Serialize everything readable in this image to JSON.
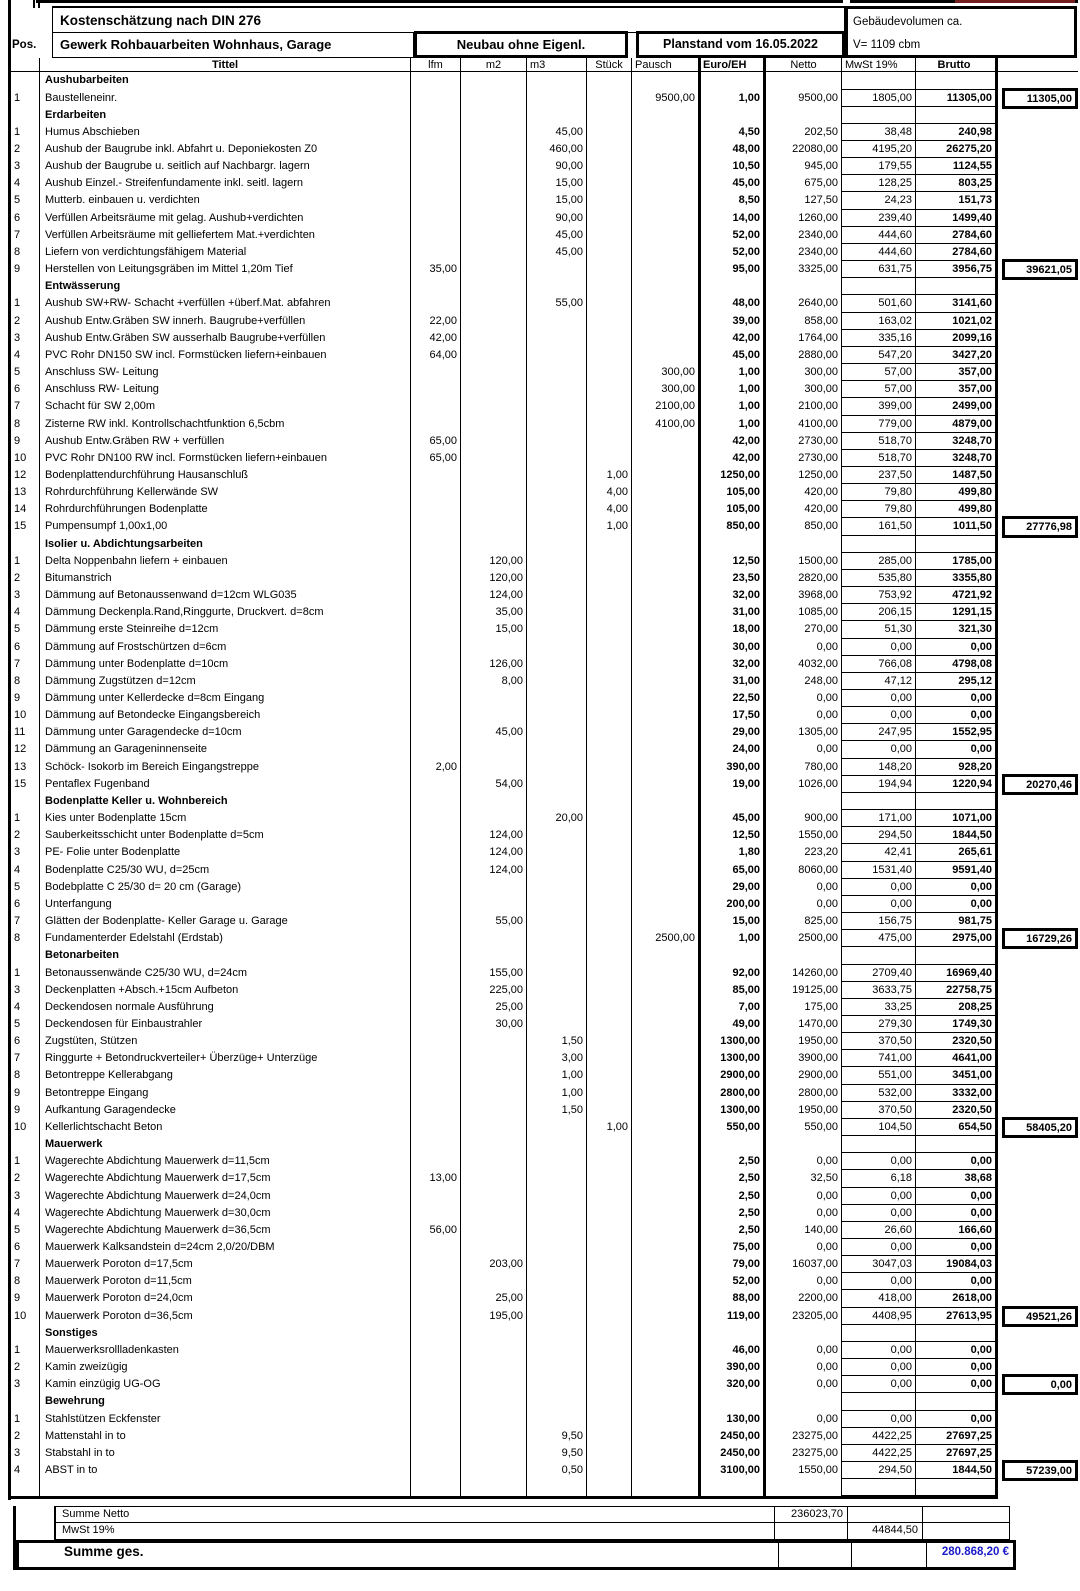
{
  "header": {
    "title": "Kostenschätzung nach DIN 276",
    "pos_label": "Pos.",
    "gewerk": "Gewerk Rohbauarbeiten Wohnhaus, Garage",
    "neubau": "Neubau ohne Eigenl.",
    "planstand": "Planstand vom 16.05.2022",
    "volume_label": "Gebäudevolumen ca.",
    "volume_value": "V= 1109 cbm",
    "columns": [
      "Tittel",
      "lfm",
      "m2",
      "m3",
      "Stück",
      "Pausch",
      "Euro/EH",
      "Netto",
      "MwSt 19%",
      "Brutto"
    ]
  },
  "sections": [
    {
      "name": "Aushubarbeiten",
      "rows": [
        {
          "pos": "1",
          "title": "Baustelleneinr.",
          "pausch": "9500,00",
          "euro": "1,00",
          "netto": "9500,00",
          "mwst": "1805,00",
          "brutto": "11305,00",
          "total": "11305,00"
        }
      ]
    },
    {
      "name": "Erdarbeiten",
      "rows": [
        {
          "pos": "1",
          "title": "Humus Abschieben",
          "m3": "45,00",
          "euro": "4,50",
          "netto": "202,50",
          "mwst": "38,48",
          "brutto": "240,98"
        },
        {
          "pos": "2",
          "title": "Aushub der Baugrube inkl. Abfahrt u. Deponiekosten Z0",
          "m3": "460,00",
          "euro": "48,00",
          "netto": "22080,00",
          "mwst": "4195,20",
          "brutto": "26275,20"
        },
        {
          "pos": "3",
          "title": "Aushub der Baugrube u. seitlich auf Nachbargr. lagern",
          "m3": "90,00",
          "euro": "10,50",
          "netto": "945,00",
          "mwst": "179,55",
          "brutto": "1124,55"
        },
        {
          "pos": "4",
          "title": "Aushub Einzel.- Streifenfundamente inkl. seitl. lagern",
          "m3": "15,00",
          "euro": "45,00",
          "netto": "675,00",
          "mwst": "128,25",
          "brutto": "803,25"
        },
        {
          "pos": "5",
          "title": "Mutterb. einbauen u. verdichten",
          "m3": "15,00",
          "euro": "8,50",
          "netto": "127,50",
          "mwst": "24,23",
          "brutto": "151,73"
        },
        {
          "pos": "6",
          "title": "Verfüllen Arbeitsräume mit gelag. Aushub+verdichten",
          "m3": "90,00",
          "euro": "14,00",
          "netto": "1260,00",
          "mwst": "239,40",
          "brutto": "1499,40"
        },
        {
          "pos": "7",
          "title": "Verfüllen Arbeitsräume mit gelliefertem Mat.+verdichten",
          "m3": "45,00",
          "euro": "52,00",
          "netto": "2340,00",
          "mwst": "444,60",
          "brutto": "2784,60"
        },
        {
          "pos": "8",
          "title": "Liefern von verdichtungsfähigem Material",
          "m3": "45,00",
          "euro": "52,00",
          "netto": "2340,00",
          "mwst": "444,60",
          "brutto": "2784,60"
        },
        {
          "pos": "9",
          "title": "Herstellen von Leitungsgräben im Mittel 1,20m Tief",
          "lfm": "35,00",
          "euro": "95,00",
          "netto": "3325,00",
          "mwst": "631,75",
          "brutto": "3956,75",
          "total": "39621,05"
        }
      ]
    },
    {
      "name": "Entwässerung",
      "rows": [
        {
          "pos": "1",
          "title": "Aushub SW+RW- Schacht +verfüllen +überf.Mat. abfahren",
          "m3": "55,00",
          "euro": "48,00",
          "netto": "2640,00",
          "mwst": "501,60",
          "brutto": "3141,60"
        },
        {
          "pos": "2",
          "title": "Aushub Entw.Gräben SW innerh. Baugrube+verfüllen",
          "lfm": "22,00",
          "euro": "39,00",
          "netto": "858,00",
          "mwst": "163,02",
          "brutto": "1021,02"
        },
        {
          "pos": "3",
          "title": "Aushub Entw.Gräben SW ausserhalb Baugrube+verfüllen",
          "lfm": "42,00",
          "euro": "42,00",
          "netto": "1764,00",
          "mwst": "335,16",
          "brutto": "2099,16"
        },
        {
          "pos": "4",
          "title": "PVC Rohr DN150 SW incl. Formstücken liefern+einbauen",
          "lfm": "64,00",
          "euro": "45,00",
          "netto": "2880,00",
          "mwst": "547,20",
          "brutto": "3427,20"
        },
        {
          "pos": "5",
          "title": "Anschluss SW- Leitung",
          "pausch": "300,00",
          "euro": "1,00",
          "netto": "300,00",
          "mwst": "57,00",
          "brutto": "357,00"
        },
        {
          "pos": "6",
          "title": "Anschluss RW- Leitung",
          "pausch": "300,00",
          "euro": "1,00",
          "netto": "300,00",
          "mwst": "57,00",
          "brutto": "357,00"
        },
        {
          "pos": "7",
          "title": "Schacht für SW 2,00m",
          "pausch": "2100,00",
          "euro": "1,00",
          "netto": "2100,00",
          "mwst": "399,00",
          "brutto": "2499,00"
        },
        {
          "pos": "8",
          "title": "Zisterne RW inkl.  Kontrollschachtfunktion 6,5cbm",
          "pausch": "4100,00",
          "euro": "1,00",
          "netto": "4100,00",
          "mwst": "779,00",
          "brutto": "4879,00"
        },
        {
          "pos": "9",
          "title": "Aushub Entw.Gräben RW + verfüllen",
          "lfm": "65,00",
          "euro": "42,00",
          "netto": "2730,00",
          "mwst": "518,70",
          "brutto": "3248,70"
        },
        {
          "pos": "10",
          "title": "PVC Rohr DN100 RW incl. Formstücken liefern+einbauen",
          "lfm": "65,00",
          "euro": "42,00",
          "netto": "2730,00",
          "mwst": "518,70",
          "brutto": "3248,70"
        },
        {
          "pos": "12",
          "title": "Bodenplattendurchführung Hausanschluß",
          "stueck": "1,00",
          "euro": "1250,00",
          "netto": "1250,00",
          "mwst": "237,50",
          "brutto": "1487,50"
        },
        {
          "pos": "13",
          "title": "Rohrdurchführung Kellerwände SW",
          "stueck": "4,00",
          "euro": "105,00",
          "netto": "420,00",
          "mwst": "79,80",
          "brutto": "499,80"
        },
        {
          "pos": "14",
          "title": "Rohrdurchführungen Bodenplatte",
          "stueck": "4,00",
          "euro": "105,00",
          "netto": "420,00",
          "mwst": "79,80",
          "brutto": "499,80"
        },
        {
          "pos": "15",
          "title": "Pumpensumpf 1,00x1,00",
          "stueck": "1,00",
          "euro": "850,00",
          "netto": "850,00",
          "mwst": "161,50",
          "brutto": "1011,50",
          "total": "27776,98"
        }
      ]
    },
    {
      "name": "Isolier u. Abdichtungsarbeiten",
      "rows": [
        {
          "pos": "1",
          "title": "Delta Noppenbahn liefern + einbauen",
          "m2": "120,00",
          "euro": "12,50",
          "netto": "1500,00",
          "mwst": "285,00",
          "brutto": "1785,00"
        },
        {
          "pos": "2",
          "title": "Bitumanstrich",
          "m2": "120,00",
          "euro": "23,50",
          "netto": "2820,00",
          "mwst": "535,80",
          "brutto": "3355,80"
        },
        {
          "pos": "3",
          "title": "Dämmung auf Betonaussenwand d=12cm WLG035",
          "m2": "124,00",
          "euro": "32,00",
          "netto": "3968,00",
          "mwst": "753,92",
          "brutto": "4721,92"
        },
        {
          "pos": "4",
          "title": "Dämmung Deckenpla.Rand,Ringgurte, Druckvert. d=8cm",
          "m2": "35,00",
          "euro": "31,00",
          "netto": "1085,00",
          "mwst": "206,15",
          "brutto": "1291,15"
        },
        {
          "pos": "5",
          "title": "Dämmung erste Steinreihe d=12cm",
          "m2": "15,00",
          "euro": "18,00",
          "netto": "270,00",
          "mwst": "51,30",
          "brutto": "321,30"
        },
        {
          "pos": "6",
          "title": "Dämmung auf Frostschürtzen d=6cm",
          "euro": "30,00",
          "netto": "0,00",
          "mwst": "0,00",
          "brutto": "0,00"
        },
        {
          "pos": "7",
          "title": "Dämmung unter Bodenplatte d=10cm",
          "m2": "126,00",
          "euro": "32,00",
          "netto": "4032,00",
          "mwst": "766,08",
          "brutto": "4798,08"
        },
        {
          "pos": "8",
          "title": "Dämmung Zugstützen d=12cm",
          "m2": "8,00",
          "euro": "31,00",
          "netto": "248,00",
          "mwst": "47,12",
          "brutto": "295,12"
        },
        {
          "pos": "9",
          "title": "Dämmung unter Kellerdecke d=8cm Eingang",
          "euro": "22,50",
          "netto": "0,00",
          "mwst": "0,00",
          "brutto": "0,00"
        },
        {
          "pos": "10",
          "title": "Dämmung auf Betondecke Eingangsbereich",
          "euro": "17,50",
          "netto": "0,00",
          "mwst": "0,00",
          "brutto": "0,00"
        },
        {
          "pos": "11",
          "title": "Dämmung unter Garagendecke d=10cm",
          "m2": "45,00",
          "euro": "29,00",
          "netto": "1305,00",
          "mwst": "247,95",
          "brutto": "1552,95"
        },
        {
          "pos": "12",
          "title": "Dämmung an Garageninnenseite",
          "euro": "24,00",
          "netto": "0,00",
          "mwst": "0,00",
          "brutto": "0,00"
        },
        {
          "pos": "13",
          "title": "Schöck- Isokorb im Bereich Eingangstreppe",
          "lfm": "2,00",
          "euro": "390,00",
          "netto": "780,00",
          "mwst": "148,20",
          "brutto": "928,20"
        },
        {
          "pos": "15",
          "title": "Pentaflex Fugenband",
          "m2": "54,00",
          "euro": "19,00",
          "netto": "1026,00",
          "mwst": "194,94",
          "brutto": "1220,94",
          "total": "20270,46"
        }
      ]
    },
    {
      "name": "Bodenplatte Keller u. Wohnbereich",
      "rows": [
        {
          "pos": "1",
          "title": "Kies unter Bodenplatte 15cm",
          "m3": "20,00",
          "euro": "45,00",
          "netto": "900,00",
          "mwst": "171,00",
          "brutto": "1071,00"
        },
        {
          "pos": "2",
          "title": "Sauberkeitsschicht unter Bodenplatte d=5cm",
          "m2": "124,00",
          "euro": "12,50",
          "netto": "1550,00",
          "mwst": "294,50",
          "brutto": "1844,50"
        },
        {
          "pos": "3",
          "title": "PE- Folie unter Bodenplatte",
          "m2": "124,00",
          "euro": "1,80",
          "netto": "223,20",
          "mwst": "42,41",
          "brutto": "265,61"
        },
        {
          "pos": "4",
          "title": "Bodenplatte C25/30 WU, d=25cm",
          "m2": "124,00",
          "euro": "65,00",
          "netto": "8060,00",
          "mwst": "1531,40",
          "brutto": "9591,40"
        },
        {
          "pos": "5",
          "title": "Bodebplatte C 25/30 d= 20 cm (Garage)",
          "euro": "29,00",
          "netto": "0,00",
          "mwst": "0,00",
          "brutto": "0,00"
        },
        {
          "pos": "6",
          "title": "Unterfangung",
          "euro": "200,00",
          "netto": "0,00",
          "mwst": "0,00",
          "brutto": "0,00"
        },
        {
          "pos": "7",
          "title": "Glätten der Bodenplatte- Keller Garage u. Garage",
          "m2": "55,00",
          "euro": "15,00",
          "netto": "825,00",
          "mwst": "156,75",
          "brutto": "981,75"
        },
        {
          "pos": "8",
          "title": "Fundamenterder Edelstahl (Erdstab)",
          "pausch": "2500,00",
          "euro": "1,00",
          "netto": "2500,00",
          "mwst": "475,00",
          "brutto": "2975,00",
          "total": "16729,26"
        }
      ]
    },
    {
      "name": "Betonarbeiten",
      "rows": [
        {
          "pos": "1",
          "title": "Betonaussenwände C25/30 WU, d=24cm",
          "m2": "155,00",
          "euro": "92,00",
          "netto": "14260,00",
          "mwst": "2709,40",
          "brutto": "16969,40"
        },
        {
          "pos": "3",
          "title": "Deckenplatten +Absch.+15cm Aufbeton",
          "m2": "225,00",
          "euro": "85,00",
          "netto": "19125,00",
          "mwst": "3633,75",
          "brutto": "22758,75"
        },
        {
          "pos": "4",
          "title": "Deckendosen normale Ausführung",
          "m2": "25,00",
          "euro": "7,00",
          "netto": "175,00",
          "mwst": "33,25",
          "brutto": "208,25"
        },
        {
          "pos": "5",
          "title": "Deckendosen für Einbaustrahler",
          "m2": "30,00",
          "euro": "49,00",
          "netto": "1470,00",
          "mwst": "279,30",
          "brutto": "1749,30"
        },
        {
          "pos": "6",
          "title": "Zugstüten, Stützen",
          "m3": "1,50",
          "euro": "1300,00",
          "netto": "1950,00",
          "mwst": "370,50",
          "brutto": "2320,50"
        },
        {
          "pos": "7",
          "title": "Ringgurte + Betondruckverteiler+ Überzüge+ Unterzüge",
          "m3": "3,00",
          "euro": "1300,00",
          "netto": "3900,00",
          "mwst": "741,00",
          "brutto": "4641,00"
        },
        {
          "pos": "8",
          "title": "Betontreppe  Kellerabgang",
          "m3": "1,00",
          "euro": "2900,00",
          "netto": "2900,00",
          "mwst": "551,00",
          "brutto": "3451,00"
        },
        {
          "pos": "9",
          "title": "Betontreppe Eingang",
          "m3": "1,00",
          "euro": "2800,00",
          "netto": "2800,00",
          "mwst": "532,00",
          "brutto": "3332,00"
        },
        {
          "pos": "9",
          "title": "Aufkantung Garagendecke",
          "m3": "1,50",
          "euro": "1300,00",
          "netto": "1950,00",
          "mwst": "370,50",
          "brutto": "2320,50"
        },
        {
          "pos": "10",
          "title": "Kellerlichtschacht Beton",
          "stueck": "1,00",
          "euro": "550,00",
          "netto": "550,00",
          "mwst": "104,50",
          "brutto": "654,50",
          "total": "58405,20"
        }
      ]
    },
    {
      "name": "Mauerwerk",
      "rows": [
        {
          "pos": "1",
          "title": "Wagerechte Abdichtung Mauerwerk d=11,5cm",
          "euro": "2,50",
          "netto": "0,00",
          "mwst": "0,00",
          "brutto": "0,00"
        },
        {
          "pos": "2",
          "title": "Wagerechte Abdichtung Mauerwerk d=17,5cm",
          "lfm": "13,00",
          "euro": "2,50",
          "netto": "32,50",
          "mwst": "6,18",
          "brutto": "38,68"
        },
        {
          "pos": "3",
          "title": "Wagerechte Abdichtung Mauerwerk d=24,0cm",
          "euro": "2,50",
          "netto": "0,00",
          "mwst": "0,00",
          "brutto": "0,00"
        },
        {
          "pos": "4",
          "title": "Wagerechte Abdichtung Mauerwerk d=30,0cm",
          "euro": "2,50",
          "netto": "0,00",
          "mwst": "0,00",
          "brutto": "0,00"
        },
        {
          "pos": "5",
          "title": "Wagerechte Abdichtung Mauerwerk d=36,5cm",
          "lfm": "56,00",
          "euro": "2,50",
          "netto": "140,00",
          "mwst": "26,60",
          "brutto": "166,60"
        },
        {
          "pos": "6",
          "title": "Mauerwerk Kalksandstein d=24cm 2,0/20/DBM",
          "euro": "75,00",
          "netto": "0,00",
          "mwst": "0,00",
          "brutto": "0,00"
        },
        {
          "pos": "7",
          "title": "Mauerwerk Poroton d=17,5cm",
          "m2": "203,00",
          "euro": "79,00",
          "netto": "16037,00",
          "mwst": "3047,03",
          "brutto": "19084,03"
        },
        {
          "pos": "8",
          "title": "Mauerwerk Poroton d=11,5cm",
          "euro": "52,00",
          "netto": "0,00",
          "mwst": "0,00",
          "brutto": "0,00"
        },
        {
          "pos": "9",
          "title": "Mauerwerk Poroton  d=24,0cm",
          "m2": "25,00",
          "euro": "88,00",
          "netto": "2200,00",
          "mwst": "418,00",
          "brutto": "2618,00"
        },
        {
          "pos": "10",
          "title": "Mauerwerk Poroton d=36,5cm",
          "m2": "195,00",
          "euro": "119,00",
          "netto": "23205,00",
          "mwst": "4408,95",
          "brutto": "27613,95",
          "total": "49521,26"
        }
      ]
    },
    {
      "name": "Sonstiges",
      "rows": [
        {
          "pos": "1",
          "title": "Mauerwerksrollladenkasten",
          "euro": "46,00",
          "netto": "0,00",
          "mwst": "0,00",
          "brutto": "0,00"
        },
        {
          "pos": "2",
          "title": "Kamin zweizügig",
          "euro": "390,00",
          "netto": "0,00",
          "mwst": "0,00",
          "brutto": "0,00"
        },
        {
          "pos": "3",
          "title": "Kamin einzügig UG-OG",
          "euro": "320,00",
          "netto": "0,00",
          "mwst": "0,00",
          "brutto": "0,00",
          "total": "0,00"
        }
      ]
    },
    {
      "name": "Bewehrung",
      "rows": [
        {
          "pos": "1",
          "title": "Stahlstützen Eckfenster",
          "euro": "130,00",
          "netto": "0,00",
          "mwst": "0,00",
          "brutto": "0,00"
        },
        {
          "pos": "2",
          "title": "Mattenstahl in to",
          "m3": "9,50",
          "euro": "2450,00",
          "netto": "23275,00",
          "mwst": "4422,25",
          "brutto": "27697,25"
        },
        {
          "pos": "3",
          "title": "Stabstahl in to",
          "m3": "9,50",
          "euro": "2450,00",
          "netto": "23275,00",
          "mwst": "4422,25",
          "brutto": "27697,25"
        },
        {
          "pos": "4",
          "title": "ABST in to",
          "m3": "0,50",
          "euro": "3100,00",
          "netto": "1550,00",
          "mwst": "294,50",
          "brutto": "1844,50",
          "total": "57239,00"
        }
      ]
    }
  ],
  "summary": {
    "rows": [
      {
        "label": "Summe Netto",
        "netto": "236023,70"
      },
      {
        "label": "MwSt 19%",
        "mwst": "44844,50"
      },
      {
        "label": "Summe ges.",
        "brutto": "280.868,20 €"
      }
    ]
  },
  "colors": {
    "total_blue": "#1a1acc",
    "line_black": "#000000"
  }
}
